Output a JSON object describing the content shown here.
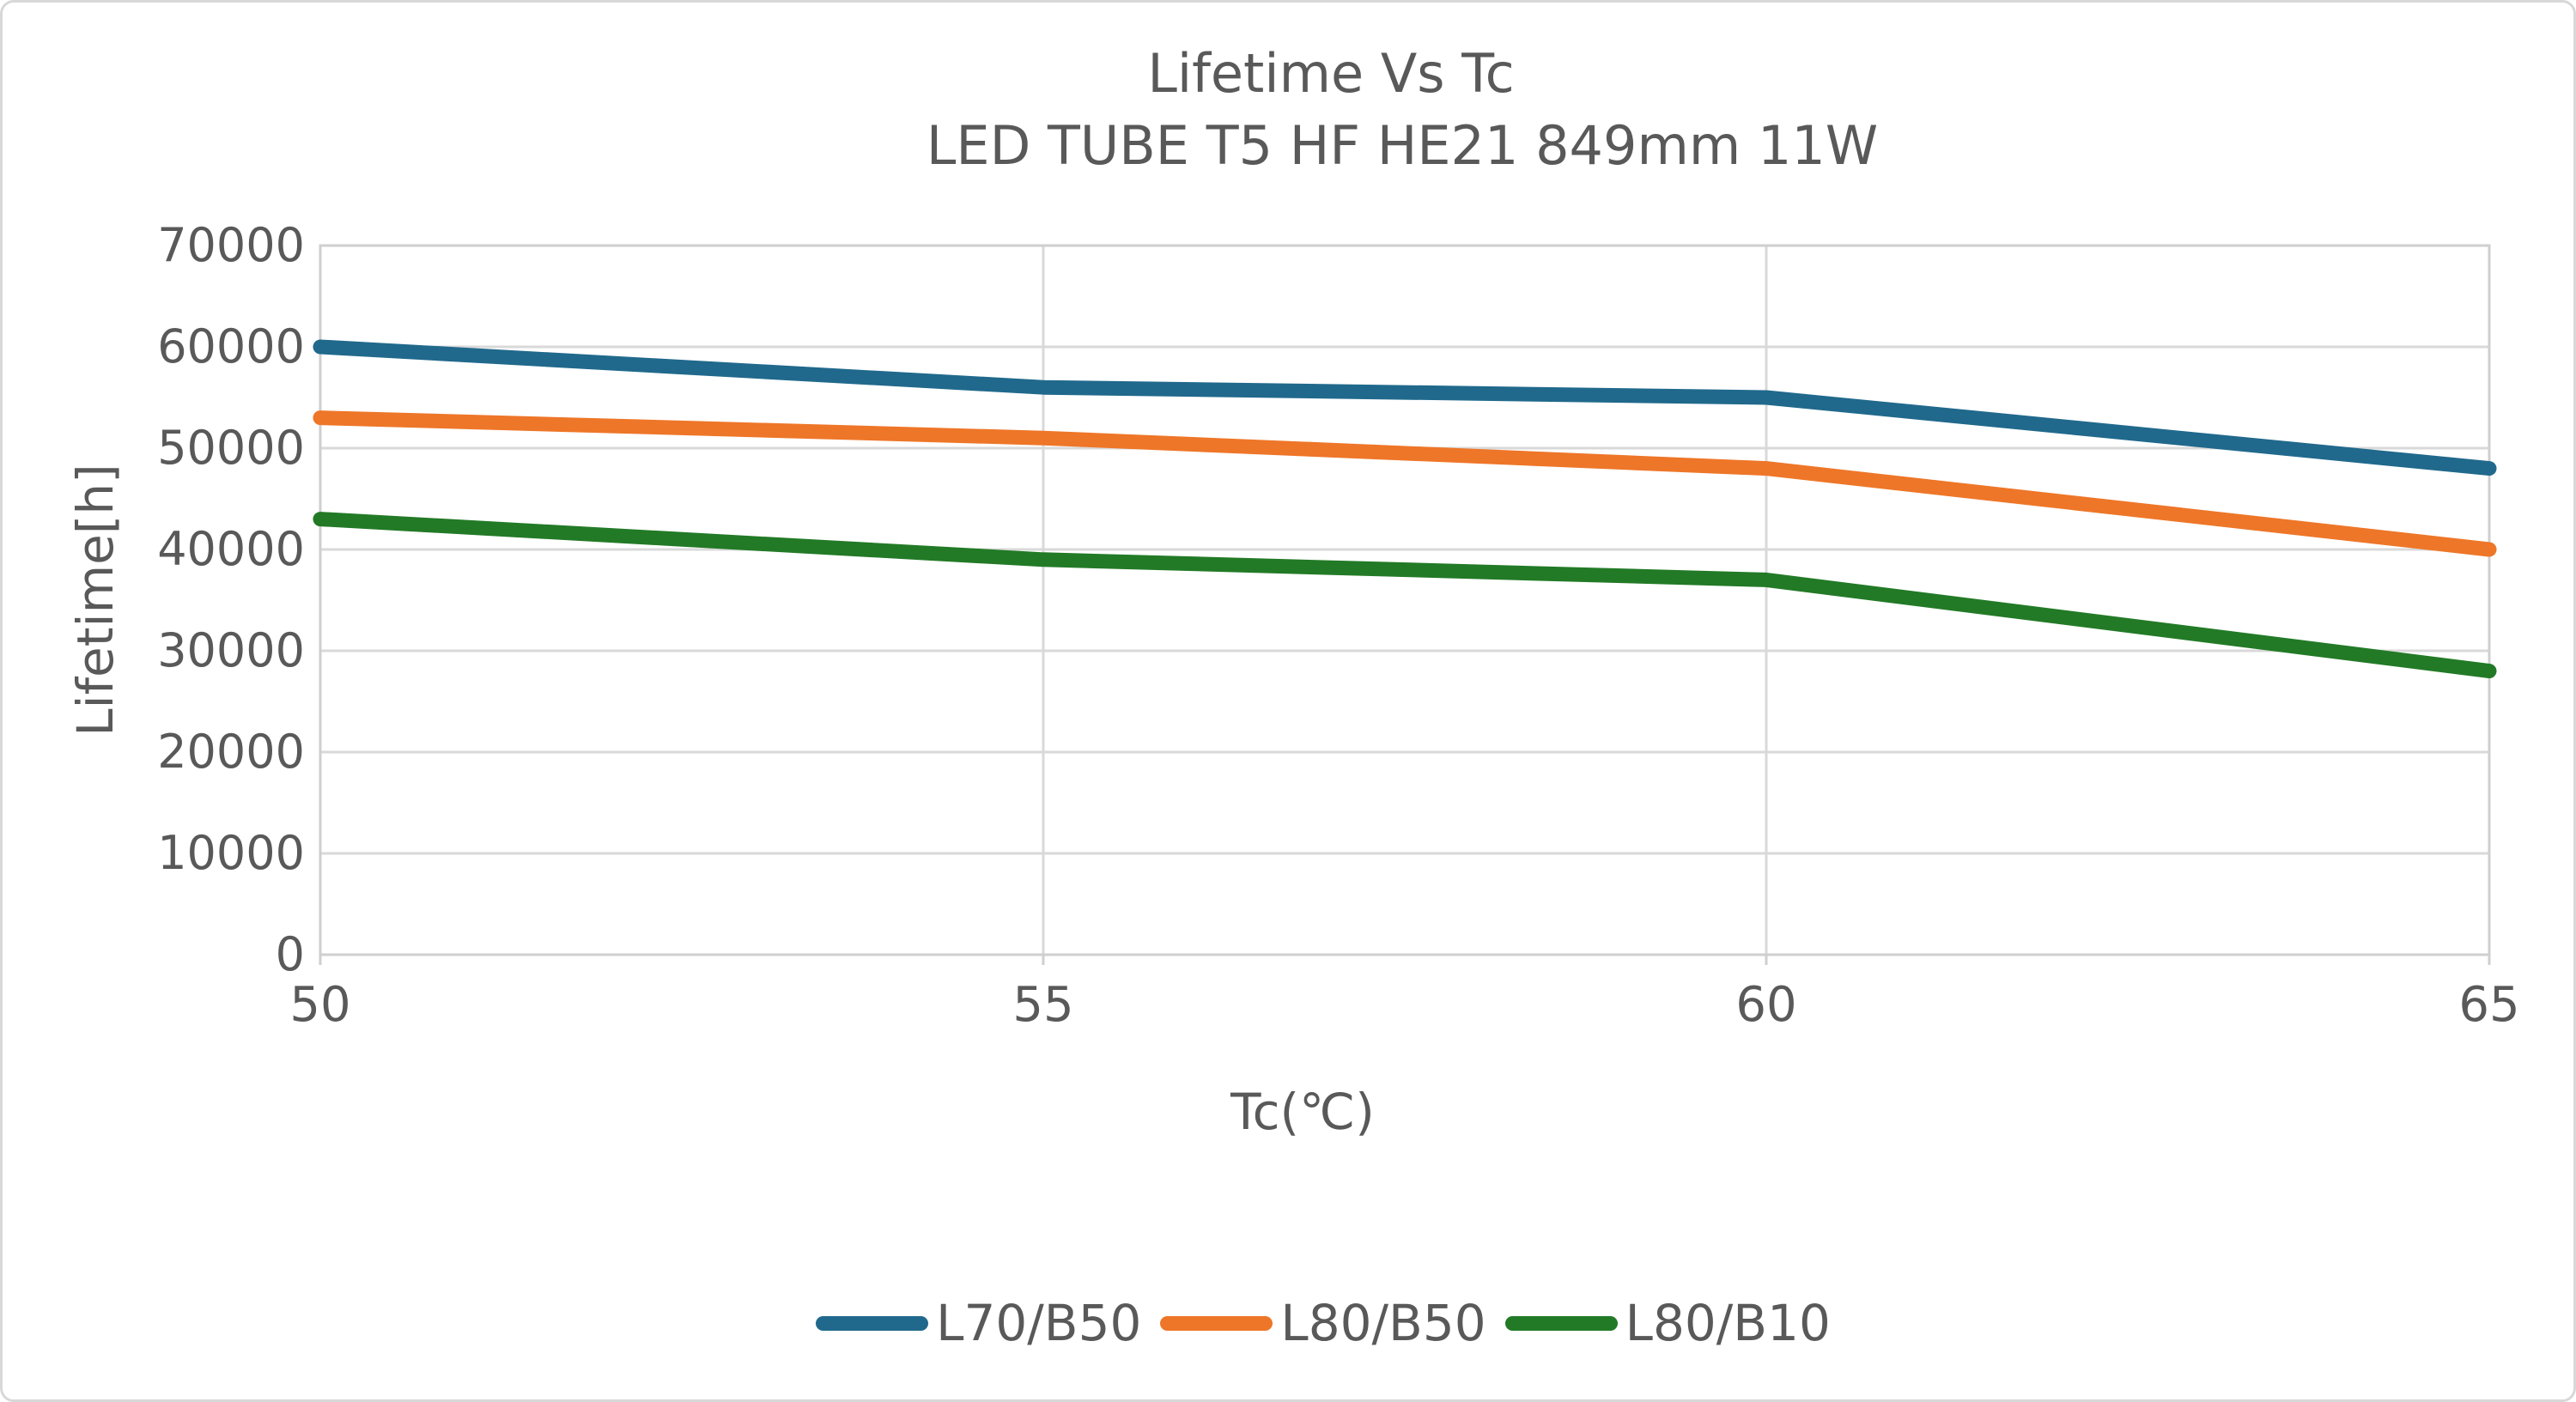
{
  "chart_data": {
    "type": "line",
    "title": "Lifetime Vs Tc",
    "subtitle": "LED TUBE T5 HF HE21 849mm 11W",
    "xlabel": "Tc(℃)",
    "ylabel": "Lifetime[h]",
    "x": [
      50,
      55,
      60,
      65
    ],
    "xticks": [
      50,
      55,
      60,
      65
    ],
    "xlim": [
      50,
      65
    ],
    "yticks": [
      0,
      10000,
      20000,
      30000,
      40000,
      50000,
      60000,
      70000
    ],
    "ylim": [
      0,
      70000
    ],
    "grid": true,
    "legend_position": "bottom-center",
    "series": [
      {
        "name": "L70/B50",
        "color": "#20698C",
        "values": [
          60000,
          56000,
          55000,
          48000
        ]
      },
      {
        "name": "L80/B50",
        "color": "#EE7628",
        "values": [
          53000,
          51000,
          48000,
          40000
        ]
      },
      {
        "name": "L80/B10",
        "color": "#227A26",
        "values": [
          43000,
          39000,
          37000,
          28000
        ]
      }
    ],
    "colors": {
      "text": "#595959",
      "grid": "#D9D9D9",
      "spine": "#CFCFCF",
      "background": "#FFFFFF"
    }
  }
}
